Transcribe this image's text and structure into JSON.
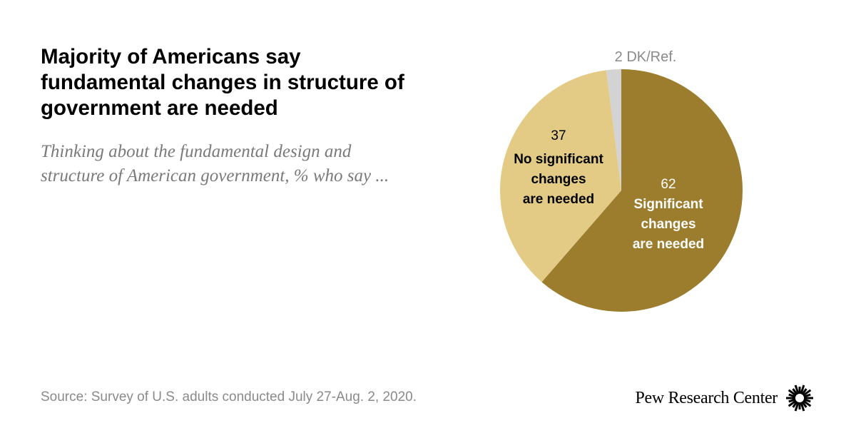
{
  "title": "Majority of Americans say fundamental changes in structure of government are needed",
  "subtitle": "Thinking about the fundamental design and structure of American government, % who say ...",
  "source": "Source: Survey of U.S. adults conducted July 27-Aug. 2, 2020.",
  "brand": {
    "name": "Pew Research Center",
    "logo_icon": "pew-sunburst-icon"
  },
  "chart_data": {
    "type": "pie",
    "title": "",
    "slices": [
      {
        "value": 62,
        "value_label": "62",
        "label_lines": [
          "Significant",
          "changes",
          "are needed"
        ],
        "color": "#9c7d2d",
        "label_color": "#ffffff",
        "value_color": "#ffffff"
      },
      {
        "value": 37,
        "value_label": "37",
        "label_lines": [
          "No significant",
          "changes",
          "are needed"
        ],
        "color": "#e3cb86",
        "label_color": "#000000",
        "value_color": "#000000"
      },
      {
        "value": 2,
        "value_label": "2",
        "label_lines": [
          "DK/Ref."
        ],
        "color": "#d3d3d3",
        "label_color": "#8a8a8a",
        "value_color": "#8a8a8a"
      }
    ],
    "start": "12 o'clock",
    "direction": "clockwise"
  }
}
